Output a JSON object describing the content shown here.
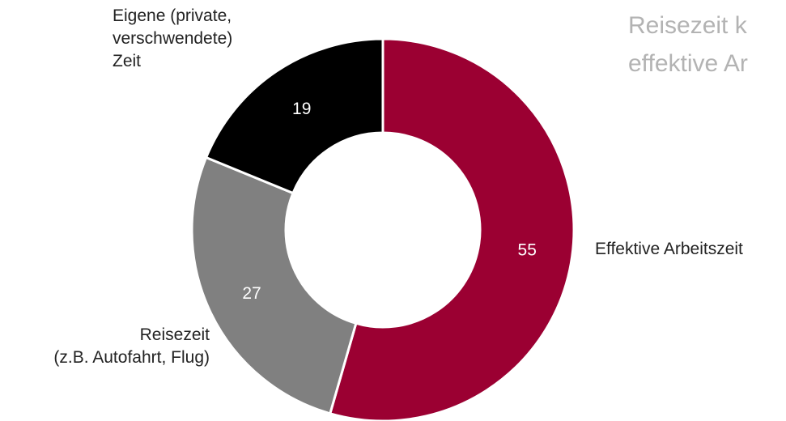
{
  "title_lines": [
    "Reisezeit k",
    "effektive Ar"
  ],
  "chart_data": {
    "type": "pie",
    "style": "donut",
    "slices": [
      {
        "label": "Effektive Arbeitszeit",
        "value": 55,
        "color": "#9b0032",
        "text_color": "#ffffff"
      },
      {
        "label": "Reisezeit (z.B. Autofahrt, Flug)",
        "value": 27,
        "color": "#808080",
        "text_color": "#ffffff"
      },
      {
        "label": "Eigene (private, verschwendete) Zeit",
        "value": 19,
        "color": "#000000",
        "text_color": "#ffffff"
      }
    ],
    "value_labels": [
      "55",
      "27",
      "19"
    ]
  },
  "callouts": {
    "effektive": [
      "Effektive Arbeitszeit"
    ],
    "reisezeit": [
      "Reisezeit",
      "(z.B. Autofahrt, Flug)"
    ],
    "eigene": [
      "Eigene (private,",
      "verschwendete)",
      "Zeit"
    ]
  }
}
